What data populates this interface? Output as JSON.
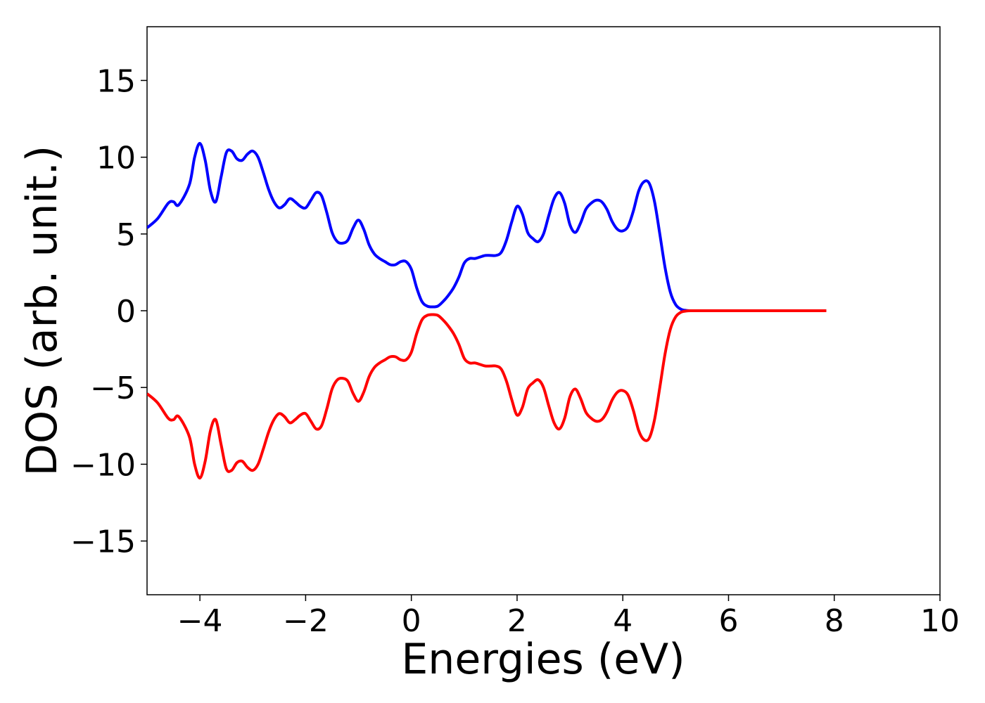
{
  "chart_data": {
    "type": "line",
    "xlabel": "Energies (eV)",
    "ylabel": "DOS (arb. unit.)",
    "xlim": [
      -5,
      10
    ],
    "ylim": [
      -18.5,
      18.5
    ],
    "xticks": [
      -4,
      -2,
      0,
      2,
      4,
      6,
      8,
      10
    ],
    "yticks": [
      -15,
      -10,
      -5,
      0,
      5,
      10,
      15
    ],
    "xtick_labels": [
      "−4",
      "−2",
      "0",
      "2",
      "4",
      "6",
      "8",
      "10"
    ],
    "ytick_labels": [
      "−15",
      "−10",
      "−5",
      "0",
      "5",
      "10",
      "15"
    ],
    "grid": false,
    "legend": "none",
    "series": [
      {
        "color": "#0000ff",
        "x": [
          -5.0,
          -4.8,
          -4.6,
          -4.5,
          -4.4,
          -4.2,
          -4.1,
          -4.0,
          -3.9,
          -3.8,
          -3.7,
          -3.6,
          -3.5,
          -3.4,
          -3.3,
          -3.2,
          -3.1,
          -3.0,
          -2.9,
          -2.8,
          -2.7,
          -2.6,
          -2.5,
          -2.4,
          -2.3,
          -2.2,
          -2.1,
          -2.0,
          -1.9,
          -1.8,
          -1.7,
          -1.6,
          -1.5,
          -1.4,
          -1.3,
          -1.2,
          -1.1,
          -1.0,
          -0.9,
          -0.8,
          -0.7,
          -0.6,
          -0.5,
          -0.4,
          -0.3,
          -0.2,
          -0.1,
          0.0,
          0.1,
          0.2,
          0.3,
          0.4,
          0.5,
          0.6,
          0.7,
          0.8,
          0.9,
          1.0,
          1.1,
          1.2,
          1.3,
          1.4,
          1.5,
          1.6,
          1.7,
          1.8,
          1.9,
          2.0,
          2.1,
          2.2,
          2.3,
          2.4,
          2.5,
          2.6,
          2.7,
          2.8,
          2.9,
          3.0,
          3.1,
          3.2,
          3.3,
          3.4,
          3.5,
          3.6,
          3.7,
          3.8,
          3.9,
          4.0,
          4.1,
          4.2,
          4.3,
          4.4,
          4.5,
          4.6,
          4.7,
          4.8,
          4.9,
          5.0,
          5.1,
          5.2,
          5.3,
          5.4,
          5.5,
          5.6,
          5.7,
          5.8,
          6.0,
          7.0,
          7.85
        ],
        "y": [
          5.4,
          6.0,
          7.0,
          7.1,
          6.9,
          8.2,
          10.0,
          10.9,
          9.8,
          7.8,
          7.1,
          8.7,
          10.3,
          10.4,
          9.9,
          9.8,
          10.2,
          10.4,
          10.0,
          9.0,
          7.9,
          7.1,
          6.7,
          6.9,
          7.3,
          7.1,
          6.8,
          6.7,
          7.2,
          7.7,
          7.5,
          6.4,
          5.1,
          4.5,
          4.4,
          4.6,
          5.4,
          5.9,
          5.3,
          4.3,
          3.7,
          3.4,
          3.2,
          3.0,
          3.0,
          3.2,
          3.2,
          2.7,
          1.5,
          0.6,
          0.3,
          0.25,
          0.3,
          0.6,
          1.0,
          1.5,
          2.2,
          3.1,
          3.4,
          3.4,
          3.5,
          3.6,
          3.6,
          3.6,
          3.8,
          4.6,
          5.8,
          6.8,
          6.3,
          5.1,
          4.7,
          4.5,
          5.0,
          6.2,
          7.3,
          7.7,
          7.0,
          5.6,
          5.1,
          5.7,
          6.6,
          7.0,
          7.2,
          7.1,
          6.6,
          5.8,
          5.3,
          5.2,
          5.5,
          6.5,
          7.8,
          8.4,
          8.3,
          7.1,
          5.0,
          2.8,
          1.2,
          0.4,
          0.1,
          0.02,
          0.0,
          0.0,
          0.0,
          0.0,
          0.0,
          0.0,
          0.0,
          0.0,
          0.0
        ]
      },
      {
        "color": "#ff0000",
        "x": [
          -5.0,
          -4.8,
          -4.6,
          -4.5,
          -4.4,
          -4.2,
          -4.1,
          -4.0,
          -3.9,
          -3.8,
          -3.7,
          -3.6,
          -3.5,
          -3.4,
          -3.3,
          -3.2,
          -3.1,
          -3.0,
          -2.9,
          -2.8,
          -2.7,
          -2.6,
          -2.5,
          -2.4,
          -2.3,
          -2.2,
          -2.1,
          -2.0,
          -1.9,
          -1.8,
          -1.7,
          -1.6,
          -1.5,
          -1.4,
          -1.3,
          -1.2,
          -1.1,
          -1.0,
          -0.9,
          -0.8,
          -0.7,
          -0.6,
          -0.5,
          -0.4,
          -0.3,
          -0.2,
          -0.1,
          0.0,
          0.1,
          0.2,
          0.3,
          0.4,
          0.5,
          0.6,
          0.7,
          0.8,
          0.9,
          1.0,
          1.1,
          1.2,
          1.3,
          1.4,
          1.5,
          1.6,
          1.7,
          1.8,
          1.9,
          2.0,
          2.1,
          2.2,
          2.3,
          2.4,
          2.5,
          2.6,
          2.7,
          2.8,
          2.9,
          3.0,
          3.1,
          3.2,
          3.3,
          3.4,
          3.5,
          3.6,
          3.7,
          3.8,
          3.9,
          4.0,
          4.1,
          4.2,
          4.3,
          4.4,
          4.5,
          4.6,
          4.7,
          4.8,
          4.9,
          5.0,
          5.1,
          5.2,
          5.3,
          5.4,
          5.5,
          5.6,
          5.7,
          5.8,
          6.0,
          7.0,
          7.85
        ],
        "y": [
          -5.4,
          -6.0,
          -7.0,
          -7.1,
          -6.9,
          -8.2,
          -10.0,
          -10.9,
          -9.8,
          -7.8,
          -7.1,
          -8.7,
          -10.3,
          -10.4,
          -9.9,
          -9.8,
          -10.2,
          -10.4,
          -10.0,
          -9.0,
          -7.9,
          -7.1,
          -6.7,
          -6.9,
          -7.3,
          -7.1,
          -6.8,
          -6.7,
          -7.2,
          -7.7,
          -7.5,
          -6.4,
          -5.1,
          -4.5,
          -4.4,
          -4.6,
          -5.4,
          -5.9,
          -5.3,
          -4.3,
          -3.7,
          -3.4,
          -3.2,
          -3.0,
          -3.0,
          -3.2,
          -3.2,
          -2.7,
          -1.5,
          -0.6,
          -0.3,
          -0.25,
          -0.3,
          -0.6,
          -1.0,
          -1.5,
          -2.2,
          -3.1,
          -3.4,
          -3.4,
          -3.5,
          -3.6,
          -3.6,
          -3.6,
          -3.8,
          -4.6,
          -5.8,
          -6.8,
          -6.3,
          -5.1,
          -4.7,
          -4.5,
          -5.0,
          -6.2,
          -7.3,
          -7.7,
          -7.0,
          -5.6,
          -5.1,
          -5.7,
          -6.6,
          -7.0,
          -7.2,
          -7.1,
          -6.6,
          -5.8,
          -5.3,
          -5.2,
          -5.5,
          -6.5,
          -7.8,
          -8.4,
          -8.3,
          -7.1,
          -5.0,
          -2.8,
          -1.2,
          -0.4,
          -0.1,
          -0.02,
          0.0,
          0.0,
          0.0,
          0.0,
          0.0,
          0.0,
          0.0,
          0.0,
          0.0
        ]
      }
    ]
  }
}
